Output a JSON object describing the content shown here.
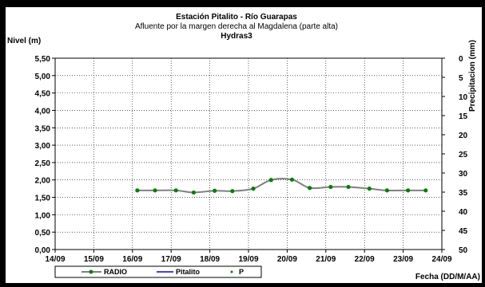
{
  "chart_data": {
    "type": "line",
    "title": "Estación Pitalito  - Río Guarapas",
    "subtitle": "Afluente por la margen derecha al Magdalena (parte alta)",
    "station": "Hydras3",
    "ylabel": "Nivel (m)",
    "y2label": "Precipitacion (mm)",
    "xlabel": "Fecha (DD/M/AA)",
    "ylim": [
      0,
      5.5
    ],
    "y2lim": [
      0,
      50
    ],
    "y2_inverted": true,
    "xlim": [
      "14/09",
      "24/09"
    ],
    "x_ticks": [
      "14/09",
      "15/09",
      "16/09",
      "17/09",
      "18/09",
      "19/09",
      "20/09",
      "21/09",
      "22/09",
      "23/09",
      "24/09"
    ],
    "y_ticks": [
      "0,00",
      "0,50",
      "1,00",
      "1,50",
      "2,00",
      "2,50",
      "3,00",
      "3,50",
      "4,00",
      "4,50",
      "5,00",
      "5,50"
    ],
    "y2_ticks": [
      "0",
      "5",
      "10",
      "15",
      "20",
      "25",
      "30",
      "35",
      "40",
      "45",
      "50"
    ],
    "grid": true,
    "legend_position": "bottom",
    "series": [
      {
        "name": "RADIO",
        "color": "#808080",
        "marker_color": "#008000",
        "x": [
          "16/09 03:00",
          "16/09 14:00",
          "17/09 03:00",
          "17/09 14:00",
          "18/09 03:00",
          "18/09 14:00",
          "19/09 03:00",
          "19/09 14:00",
          "20/09 03:00",
          "20/09 14:00",
          "21/09 03:00",
          "21/09 14:00",
          "22/09 03:00",
          "22/09 14:00",
          "23/09 03:00",
          "23/09 14:00"
        ],
        "values": [
          1.7,
          1.7,
          1.7,
          1.64,
          1.69,
          1.68,
          1.75,
          2.0,
          2.01,
          1.77,
          1.8,
          1.8,
          1.75,
          1.7,
          1.7,
          1.7
        ]
      },
      {
        "name": "Pitalito",
        "color": "#0000ff",
        "values": []
      },
      {
        "name": "P",
        "color": "#008000",
        "values": []
      }
    ]
  }
}
